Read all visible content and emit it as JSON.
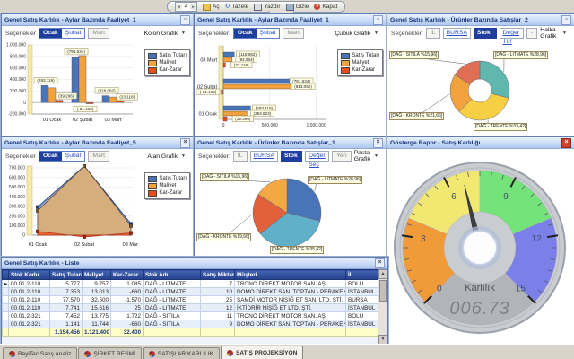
{
  "toolbar": {
    "spinner": "4",
    "open_label": "Aç",
    "refresh_label": "Tazele",
    "print_label": "Yazdır",
    "hide_label": "Gizle",
    "close_label": "Kapat"
  },
  "panels": {
    "p1": {
      "title": "Genel Satış Karlılık - Aylar Bazında Faaliyet_1",
      "options_label": "Seçenekler",
      "btn1": "Ocak",
      "btn2": "Şubat",
      "btn3": "Mart"
    },
    "p2": {
      "title": "Genel Satış Karlılık - Aylar Bazında Faaliyet_1",
      "options_label": "Seçenekler:",
      "btn1": "Ocak",
      "btn2": "Şubat",
      "btn3": "Mart"
    },
    "p3": {
      "title": "Genel Satış Karlılık - Ürünler Bazında Satışlar_2",
      "options_label": "Seçenekler:",
      "btn1": "İL",
      "btn2": "BURSA",
      "btn3": "Stok Adı",
      "btn4": "Değer Tür",
      "btn5": "-"
    },
    "p4": {
      "title": "Genel Satış Karlılık - Aylar Bazında Faaliyet_5",
      "options_label": "Seçenekler",
      "btn1": "Ocak",
      "btn2": "Şubat",
      "btn3": "Mart"
    },
    "p5": {
      "title": "Genel Satış Karlılık - Ürünler Bazında Satışlar_1",
      "options_label": "Seçenekler:",
      "btn1": "İL",
      "btn2": "BURSA",
      "btn3": "Stok Adı",
      "btn4": "Değer Seç",
      "btn5": "Yeri"
    },
    "gauge": {
      "title": "Gösterge Rapor - Satış Karlılığı"
    },
    "list": {
      "title": "Genel Satış Karlılık - Liste"
    }
  },
  "legend": {
    "items": [
      {
        "label": "Satış Tutarı",
        "color": "#4a74b8"
      },
      {
        "label": "Maliyet",
        "color": "#f2a23c"
      },
      {
        "label": "Kar-Zarar",
        "color": "#e84d1c"
      }
    ]
  },
  "chart_data": [
    {
      "id": "monthly_column",
      "type": "bar",
      "chart_type_label": "Kolon Grafik",
      "categories": [
        "01 Ocak",
        "02 Şubat",
        "03 Mart"
      ],
      "ylim": [
        -200000,
        1000000
      ],
      "yticks": [
        "1.000.000",
        "800.000",
        "600.000",
        "400.000",
        "200.000",
        "0",
        "-200.000"
      ],
      "series": [
        {
          "name": "Satış Tutarı",
          "color": "#4a74b8",
          "values": [
            293119,
            791634,
            118082
          ],
          "labels": [
            "(293.119)",
            "(791.634)",
            "(118.082)"
          ]
        },
        {
          "name": "Maliyet",
          "color": "#f2a23c",
          "values": [
            253823,
            813050,
            94964
          ],
          "labels": null
        },
        {
          "name": "Kar-Zarar",
          "color": "#e84d1c",
          "values": [
            39296,
            -21416,
            23118
          ],
          "labels": [
            "(39.296)",
            "(-21.416)",
            "(23.118)"
          ]
        }
      ]
    },
    {
      "id": "monthly_hbar",
      "type": "bar-horizontal",
      "chart_type_label": "Çubuk Grafik",
      "categories": [
        "01 Ocak",
        "02 Şubat",
        "03 Mart"
      ],
      "xlim": [
        0,
        1100000
      ],
      "xticks": [
        "0",
        "500.000",
        "1.000.000"
      ],
      "series": [
        {
          "name": "Satış Tutarı",
          "color": "#4a74b8",
          "values": [
            293119,
            791634,
            118082
          ],
          "labels": [
            "(293.119)",
            "(791.634)",
            "(118.082)"
          ]
        },
        {
          "name": "Maliyet",
          "color": "#f2a23c",
          "values": [
            253823,
            813050,
            94964
          ],
          "labels": [
            "(253.823)",
            "(813.050)",
            "(94.964)"
          ]
        },
        {
          "name": "Kar-Zarar",
          "color": "#e84d1c",
          "values": [
            39296,
            -21416,
            23118
          ],
          "labels": [
            "(39.296)",
            "(-21.416)",
            "(23.118)"
          ]
        }
      ]
    },
    {
      "id": "products_donut",
      "type": "pie",
      "donut": true,
      "chart_type_label": "Halka Grafik",
      "slices": [
        {
          "label": "[DAĞ - LITMATE %28,96]",
          "value": 28.96,
          "color": "#5fb7ae"
        },
        {
          "label": "[DAĞ - TRENTE %33,42]",
          "value": 33.42,
          "color": "#f7cf45"
        },
        {
          "label": "[DAĞ - KRONTE %21,66]",
          "value": 21.66,
          "color": "#f2a23c"
        },
        {
          "label": "[DAĞ - SITILA %15,96]",
          "value": 15.96,
          "color": "#de6f54"
        }
      ]
    },
    {
      "id": "monthly_area",
      "type": "area",
      "chart_type_label": "Alan Grafik",
      "categories": [
        "01 Ocak",
        "02 Şubat",
        "03 Mart"
      ],
      "ylim": [
        0,
        700000
      ],
      "yticks": [
        "700.000",
        "600.000",
        "500.000",
        "400.000",
        "300.000",
        "200.000",
        "100.000",
        "0"
      ],
      "series": [
        {
          "name": "Satış Tutarı",
          "color": "#4a74b8",
          "values": [
            293119,
            791634,
            118082
          ]
        },
        {
          "name": "Maliyet",
          "color": "#d6ae7e",
          "values": [
            253823,
            813050,
            94964
          ]
        },
        {
          "name": "Kar-Zarar",
          "color": "#e84d1c",
          "values": [
            39296,
            -21416,
            23118
          ]
        }
      ]
    },
    {
      "id": "products_pie",
      "type": "pie",
      "donut": false,
      "chart_type_label": "Pasta Grafik",
      "slices": [
        {
          "label": "[DAĞ - LITMATE %28,96]",
          "value": 28.96,
          "color": "#4a74b8"
        },
        {
          "label": "[DAĞ - TRENTE %35,42]",
          "value": 35.42,
          "color": "#5fb0c8"
        },
        {
          "label": "[DAĞ - KRONTE %19,66]",
          "value": 19.66,
          "color": "#e2603a"
        },
        {
          "label": "[DAĞ - SITILA %15,96]",
          "value": 15.96,
          "color": "#f2a843"
        }
      ]
    },
    {
      "id": "profit_gauge",
      "type": "gauge",
      "min": 0,
      "max": 15,
      "value": 6.73,
      "display": "006.73",
      "center_label": "Karlılık",
      "tick_labels": [
        0,
        3,
        6,
        9,
        12,
        15
      ],
      "ranges": [
        {
          "from": 0,
          "to": 3.75,
          "color": "#f09a38"
        },
        {
          "from": 3.75,
          "to": 7.5,
          "color": "#f1e871"
        },
        {
          "from": 7.5,
          "to": 11.25,
          "color": "#74e379"
        },
        {
          "from": 11.25,
          "to": 15,
          "color": "#7b80e8"
        }
      ]
    }
  ],
  "table": {
    "columns": [
      "Stok Kodu",
      "Satış Tutarı",
      "Maliyet",
      "Kar-Zarar",
      "Stok Adı",
      "Satış Miktarı",
      "Müşteri",
      "İl"
    ],
    "rows": [
      [
        "00.01.2-110",
        "5.777",
        "9.757",
        "1.085",
        "DAĞ - LITMATE",
        "7",
        "TRONO DİREKT MOTOR SAN. AŞ",
        "BOLU"
      ],
      [
        "00.01.2-110",
        "7.353",
        "13.013",
        "-660",
        "DAĞ - LITMATE",
        "10",
        "DOMO DİREKT SAN. TOPTAN - PERAKENDE SAT. LTD. ŞT",
        "İSTANBUL"
      ],
      [
        "00.01.2-110",
        "77.570",
        "32.500",
        "-1.570",
        "DAĞ - LITMATE",
        "25",
        "SAMDİ MOTOR NİŞİĞ ET SAN. LTD. ŞTİ.",
        "BURSA"
      ],
      [
        "00.01.2-110",
        "7.741",
        "15.616",
        "25",
        "DAĞ - LITMATE",
        "12",
        "İKTİDRİR NİŞİĞ ET LTD. ŞTİ.",
        "İSTANBUL"
      ],
      [
        "00.01.2-321",
        "7.452",
        "13.775",
        "1.722",
        "DAĞ - SITILA",
        "11",
        "TRONO DİREKT MOTOR SAN. AŞ",
        "BOLU"
      ],
      [
        "00.01.2-321",
        "1.141",
        "11.744",
        "-660",
        "DAĞ - SITILA",
        "9",
        "DOMO DİREKT SAN. TOPTAN - PERAKENDE SAT. LTD. ŞT",
        "İSTANBUL"
      ]
    ],
    "totals": [
      "",
      "1.154.456",
      "1.121.400",
      "32.400",
      "",
      "",
      "",
      ""
    ]
  },
  "tabs": {
    "items": [
      {
        "label": "BayiTec Satış Analiz",
        "active": false
      },
      {
        "label": "ŞİRKET RESMİ",
        "active": false
      },
      {
        "label": "SATIŞLAR KARLILIK",
        "active": false
      },
      {
        "label": "SATIŞ PROJEKSİYON",
        "active": true
      }
    ]
  }
}
